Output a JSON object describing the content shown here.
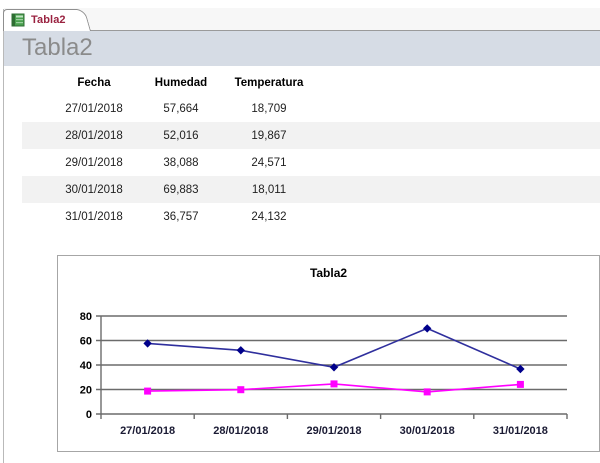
{
  "tab": {
    "label": "Tabla2",
    "icon": "table-icon"
  },
  "header": {
    "title": "Tabla2"
  },
  "table": {
    "columns": [
      "Fecha",
      "Humedad",
      "Temperatura"
    ],
    "rows": [
      [
        "27/01/2018",
        "57,664",
        "18,709"
      ],
      [
        "28/01/2018",
        "52,016",
        "19,867"
      ],
      [
        "29/01/2018",
        "38,088",
        "24,571"
      ],
      [
        "30/01/2018",
        "69,883",
        "18,011"
      ],
      [
        "31/01/2018",
        "36,757",
        "24,132"
      ]
    ]
  },
  "chart_data": {
    "type": "line",
    "title": "Tabla2",
    "categories": [
      "27/01/2018",
      "28/01/2018",
      "29/01/2018",
      "30/01/2018",
      "31/01/2018"
    ],
    "series": [
      {
        "name": "Humedad",
        "values": [
          57.664,
          52.016,
          38.088,
          69.883,
          36.757
        ],
        "color": "#2f2f9d",
        "marker": "diamond",
        "marker_color": "#00008b"
      },
      {
        "name": "Temperatura",
        "values": [
          18.709,
          19.867,
          24.571,
          18.011,
          24.132
        ],
        "color": "#ff00ff",
        "marker": "square",
        "marker_color": "#ff00ff"
      }
    ],
    "ylim": [
      0,
      80
    ],
    "yticks": [
      0,
      20,
      40,
      60,
      80
    ],
    "grid": true,
    "legend": "none",
    "axis_color": "#6b6b6b"
  },
  "colors": {
    "tab_text": "#9a2240",
    "band_bg": "#d6dce5",
    "page_title": "#8b8b8b",
    "row_stripe": "#f2f2f2",
    "chart_border": "#a6a6a6"
  }
}
